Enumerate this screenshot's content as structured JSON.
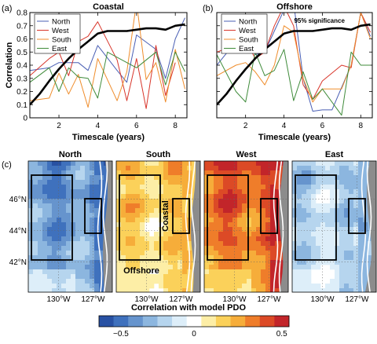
{
  "panel_labels": {
    "a": "(a)",
    "b": "(b)",
    "c": "(c)"
  },
  "line_series_style": {
    "North": "#4a5fb4",
    "West": "#d8352a",
    "South": "#ef8d2c",
    "East": "#3f8b3a",
    "significance": "#000000"
  },
  "chart_data": [
    {
      "type": "line",
      "panel": "a",
      "title": "Coastal",
      "xlabel": "Timescale (years)",
      "ylabel": "Correlation",
      "xlim": [
        0.5,
        8.6
      ],
      "ylim": [
        0,
        0.8
      ],
      "xticks": [
        2,
        4,
        6,
        8
      ],
      "yticks": [
        0,
        0.1,
        0.2,
        0.3,
        0.4,
        0.5,
        0.6,
        0.7,
        0.8
      ],
      "ytick_labels": [
        "0",
        "0.1",
        "0.2",
        "0.3",
        "0.4",
        "0.5",
        "0.6",
        "0.7",
        "0.8"
      ],
      "legend": [
        "North",
        "West",
        "South",
        "East"
      ],
      "legend_position": "top-left",
      "x": [
        0.5,
        1,
        1.5,
        2,
        2.5,
        3,
        3.5,
        4,
        4.5,
        5,
        5.5,
        6,
        6.5,
        7,
        7.5,
        8,
        8.5
      ],
      "series": [
        {
          "name": "North",
          "values": [
            0.36,
            null,
            0.38,
            0.42,
            null,
            0.42,
            0.36,
            0.55,
            null,
            0.36,
            0.27,
            0.63,
            null,
            0.52,
            0.3,
            0.6,
            0.76
          ]
        },
        {
          "name": "West",
          "values": [
            0.32,
            null,
            0.45,
            0.5,
            0.32,
            0.58,
            0.62,
            0.73,
            null,
            0.44,
            0.13,
            0.45,
            0.07,
            0.55,
            0.17,
            0.42,
            null
          ]
        },
        {
          "name": "South",
          "values": [
            0.13,
            null,
            0.15,
            0.34,
            0.18,
            0.33,
            0.08,
            0.45,
            null,
            0.13,
            0.35,
            0.88,
            0.29,
            0.42,
            0.12,
            0.52,
            0.22
          ]
        },
        {
          "name": "East",
          "values": [
            0.27,
            null,
            0.38,
            0.2,
            0.38,
            0.31,
            0.3,
            0.15,
            0.5,
            null,
            0.42,
            0.38,
            null,
            0.5,
            0.25,
            0.5,
            0.35
          ]
        },
        {
          "name": "",
          "role": "significance",
          "values": [
            0.1,
            0.18,
            0.28,
            0.37,
            0.45,
            0.52,
            0.58,
            0.64,
            0.66,
            0.66,
            0.66,
            0.67,
            0.68,
            0.68,
            0.67,
            0.7,
            0.71
          ]
        }
      ]
    },
    {
      "type": "line",
      "panel": "b",
      "title": "Offshore",
      "xlabel": "Timescale (years)",
      "ylabel": "",
      "xlim": [
        0.5,
        8.6
      ],
      "ylim": [
        0,
        0.8
      ],
      "xticks": [
        2,
        4,
        6,
        8
      ],
      "yticks": [
        0,
        0.1,
        0.2,
        0.3,
        0.4,
        0.5,
        0.6,
        0.7,
        0.8
      ],
      "ytick_labels": [
        "",
        "",
        "",
        "",
        "",
        "",
        "",
        "",
        ""
      ],
      "legend": [
        "North",
        "West",
        "South",
        "East"
      ],
      "legend_position": "top-left",
      "annotation": "95% significance",
      "x": [
        0.5,
        1,
        1.5,
        2,
        2.5,
        3,
        3.5,
        4,
        4.5,
        5,
        5.5,
        6,
        6.5,
        7,
        7.5,
        8,
        8.5
      ],
      "series": [
        {
          "name": "North",
          "values": [
            0.4,
            null,
            0.58,
            0.65,
            0.48,
            0.5,
            0.66,
            0.82,
            0.88,
            0.3,
            0.05,
            0.06,
            0.06,
            null,
            0.4,
            0.8,
            0.62
          ]
        },
        {
          "name": "West",
          "values": [
            0.5,
            null,
            0.55,
            0.6,
            0.45,
            0.5,
            0.7,
            0.85,
            0.7,
            0.25,
            0.14,
            0.28,
            null,
            0.4,
            0.38,
            0.8,
            0.65
          ]
        },
        {
          "name": "South",
          "values": [
            0.32,
            null,
            0.4,
            0.42,
            0.35,
            0.25,
            0.4,
            0.7,
            0.65,
            0.3,
            0.12,
            0.22,
            null,
            0.22,
            0.4,
            0.8,
            0.6
          ]
        },
        {
          "name": "East",
          "values": [
            0.48,
            null,
            0.2,
            0.12,
            0.5,
            0.32,
            0.36,
            0.52,
            0.13,
            0.35,
            0.14,
            0.22,
            null,
            0.02,
            0.5,
            0.4,
            0.4
          ]
        },
        {
          "name": "",
          "role": "significance",
          "values": [
            0.1,
            0.18,
            0.28,
            0.37,
            0.45,
            0.52,
            0.58,
            0.64,
            0.66,
            0.66,
            0.66,
            0.67,
            0.68,
            0.68,
            0.67,
            0.7,
            0.71
          ]
        }
      ]
    },
    {
      "type": "heatmap",
      "panel": "c",
      "title": "",
      "colorbar_label": "Correlation with model PDO",
      "colorbar_ticks": [
        "−0.5",
        "0",
        "0.5"
      ],
      "colorbar_range": [
        -0.5,
        0.5
      ],
      "colorbar_colors": [
        "#2851a3",
        "#3f71bd",
        "#6694cd",
        "#8cb6df",
        "#b6d5ee",
        "#ddeef9",
        "#ffffff",
        "#fdeea6",
        "#fbd15a",
        "#f6ad3a",
        "#ef7d2a",
        "#dc4a26",
        "#c2252a"
      ],
      "lon_ticks": [
        "130°W",
        "127°W"
      ],
      "lat_ticks": [
        "46°N",
        "44°N",
        "42°N"
      ],
      "maps": [
        {
          "title": "North",
          "mean_correlation": -0.3,
          "box_labels": []
        },
        {
          "title": "South",
          "mean_correlation": 0.15,
          "box_labels": [
            "Coastal",
            "Offshore"
          ]
        },
        {
          "title": "West",
          "mean_correlation": 0.35,
          "box_labels": []
        },
        {
          "title": "East",
          "mean_correlation": -0.15,
          "box_labels": []
        }
      ]
    }
  ]
}
